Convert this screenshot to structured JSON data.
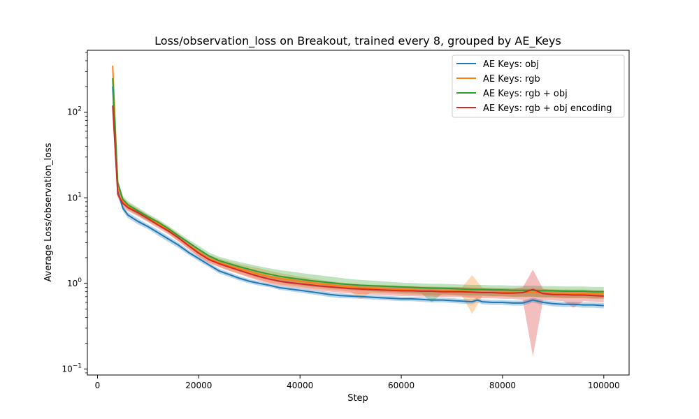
{
  "chart_data": {
    "type": "line",
    "title": "Loss/observation_loss on Breakout, trained every 8, grouped by AE_Keys",
    "xlabel": "Step",
    "ylabel": "Average Loss/observation_loss",
    "xlim": [
      -2000,
      105000
    ],
    "ylim": [
      0.085,
      530
    ],
    "yscale": "log",
    "grid": false,
    "legend_position": "upper right",
    "x_ticks": [
      0,
      20000,
      40000,
      60000,
      80000,
      100000
    ],
    "x_tick_labels": [
      "0",
      "20000",
      "40000",
      "60000",
      "80000",
      "100000"
    ],
    "y_ticks": [
      0.1,
      1,
      10,
      100
    ],
    "y_tick_labels": [
      {
        "base": "10",
        "exp": "−1"
      },
      {
        "base": "10",
        "exp": "0"
      },
      {
        "base": "10",
        "exp": "1"
      },
      {
        "base": "10",
        "exp": "2"
      }
    ],
    "series": [
      {
        "name": "AE Keys: obj",
        "color": "#1f77b4",
        "x": [
          3000,
          4000,
          5000,
          6000,
          8000,
          10000,
          12000,
          14000,
          16000,
          18000,
          20000,
          22000,
          24000,
          26000,
          28000,
          30000,
          32000,
          34000,
          36000,
          38000,
          40000,
          42000,
          44000,
          46000,
          48000,
          50000,
          52000,
          54000,
          56000,
          58000,
          60000,
          62000,
          64000,
          66000,
          68000,
          70000,
          72000,
          74000,
          75000,
          76000,
          78000,
          80000,
          82000,
          84000,
          86000,
          88000,
          90000,
          92000,
          94000,
          96000,
          98000,
          100000
        ],
        "y": [
          200,
          12,
          7.6,
          6.3,
          5.3,
          4.6,
          3.9,
          3.3,
          2.8,
          2.3,
          1.95,
          1.65,
          1.4,
          1.27,
          1.15,
          1.06,
          1.0,
          0.95,
          0.89,
          0.86,
          0.83,
          0.8,
          0.77,
          0.74,
          0.72,
          0.71,
          0.7,
          0.69,
          0.68,
          0.67,
          0.66,
          0.66,
          0.65,
          0.64,
          0.64,
          0.63,
          0.62,
          0.61,
          0.64,
          0.61,
          0.6,
          0.6,
          0.59,
          0.59,
          0.64,
          0.6,
          0.58,
          0.57,
          0.57,
          0.56,
          0.56,
          0.55
        ],
        "upper": [
          220,
          13,
          8.2,
          6.8,
          5.7,
          4.9,
          4.2,
          3.55,
          3.0,
          2.45,
          2.08,
          1.75,
          1.49,
          1.35,
          1.22,
          1.12,
          1.06,
          1.0,
          0.94,
          0.91,
          0.88,
          0.85,
          0.82,
          0.79,
          0.77,
          0.75,
          0.74,
          0.73,
          0.72,
          0.71,
          0.7,
          0.7,
          0.69,
          0.68,
          0.68,
          0.67,
          0.66,
          0.65,
          0.68,
          0.65,
          0.64,
          0.64,
          0.63,
          0.63,
          0.68,
          0.64,
          0.62,
          0.61,
          0.61,
          0.6,
          0.6,
          0.59
        ],
        "lower": [
          180,
          11,
          7.0,
          5.8,
          4.9,
          4.3,
          3.6,
          3.05,
          2.6,
          2.15,
          1.82,
          1.55,
          1.31,
          1.19,
          1.08,
          1.0,
          0.94,
          0.9,
          0.84,
          0.81,
          0.78,
          0.75,
          0.72,
          0.69,
          0.67,
          0.67,
          0.66,
          0.65,
          0.64,
          0.63,
          0.62,
          0.62,
          0.61,
          0.6,
          0.6,
          0.59,
          0.58,
          0.57,
          0.6,
          0.57,
          0.56,
          0.56,
          0.55,
          0.55,
          0.6,
          0.56,
          0.54,
          0.53,
          0.53,
          0.52,
          0.52,
          0.51
        ]
      },
      {
        "name": "AE Keys: rgb",
        "color": "#ff7f0e",
        "x": [
          3000,
          4000,
          5000,
          6000,
          8000,
          10000,
          12000,
          14000,
          16000,
          18000,
          20000,
          22000,
          24000,
          26000,
          28000,
          30000,
          32000,
          34000,
          36000,
          38000,
          40000,
          42000,
          44000,
          46000,
          48000,
          50000,
          52000,
          54000,
          56000,
          58000,
          60000,
          62000,
          64000,
          66000,
          68000,
          70000,
          72000,
          74000,
          76000,
          78000,
          80000,
          82000,
          84000,
          86000,
          88000,
          90000,
          92000,
          94000,
          96000,
          98000,
          100000
        ],
        "y": [
          350,
          14,
          9.2,
          8.0,
          6.8,
          5.8,
          5.0,
          4.2,
          3.4,
          2.8,
          2.3,
          1.95,
          1.75,
          1.6,
          1.48,
          1.38,
          1.28,
          1.2,
          1.14,
          1.1,
          1.06,
          1.02,
          0.99,
          0.96,
          0.93,
          0.91,
          0.89,
          0.88,
          0.87,
          0.86,
          0.85,
          0.84,
          0.83,
          0.83,
          0.82,
          0.82,
          0.81,
          0.8,
          0.8,
          0.79,
          0.79,
          0.78,
          0.78,
          0.78,
          0.77,
          0.77,
          0.76,
          0.76,
          0.76,
          0.75,
          0.75
        ],
        "upper": [
          380,
          15.5,
          10.2,
          8.8,
          7.4,
          6.3,
          5.4,
          4.6,
          3.75,
          3.1,
          2.55,
          2.15,
          1.95,
          1.8,
          1.68,
          1.58,
          1.5,
          1.4,
          1.32,
          1.26,
          1.2,
          1.15,
          1.1,
          1.06,
          1.03,
          1.0,
          0.98,
          0.97,
          0.96,
          0.95,
          0.94,
          0.93,
          0.92,
          0.92,
          0.91,
          0.91,
          0.9,
          1.25,
          0.89,
          0.88,
          0.88,
          0.87,
          0.87,
          0.87,
          0.86,
          0.86,
          0.85,
          0.85,
          0.85,
          0.84,
          0.84
        ],
        "lower": [
          320,
          12.5,
          8.3,
          7.2,
          6.2,
          5.3,
          4.6,
          3.85,
          3.1,
          2.55,
          2.08,
          1.76,
          1.57,
          1.42,
          1.3,
          1.2,
          1.1,
          1.02,
          0.97,
          0.94,
          0.91,
          0.88,
          0.86,
          0.84,
          0.82,
          0.8,
          0.66,
          0.78,
          0.77,
          0.76,
          0.75,
          0.74,
          0.73,
          0.73,
          0.72,
          0.72,
          0.71,
          0.44,
          0.71,
          0.7,
          0.7,
          0.69,
          0.69,
          0.69,
          0.68,
          0.68,
          0.67,
          0.67,
          0.67,
          0.66,
          0.66
        ]
      },
      {
        "name": "AE Keys: rgb + obj",
        "color": "#2ca02c",
        "x": [
          3000,
          4000,
          5000,
          6000,
          8000,
          10000,
          12000,
          14000,
          16000,
          18000,
          20000,
          22000,
          24000,
          26000,
          28000,
          30000,
          32000,
          34000,
          36000,
          38000,
          40000,
          42000,
          44000,
          46000,
          48000,
          50000,
          52000,
          54000,
          56000,
          58000,
          60000,
          62000,
          64000,
          66000,
          68000,
          70000,
          72000,
          74000,
          76000,
          78000,
          80000,
          82000,
          84000,
          86000,
          88000,
          90000,
          92000,
          94000,
          96000,
          98000,
          100000
        ],
        "y": [
          250,
          15,
          9.6,
          8.3,
          7.0,
          6.0,
          5.2,
          4.35,
          3.6,
          3.0,
          2.5,
          2.1,
          1.85,
          1.7,
          1.57,
          1.46,
          1.36,
          1.28,
          1.21,
          1.16,
          1.12,
          1.08,
          1.05,
          1.02,
          0.99,
          0.97,
          0.95,
          0.94,
          0.93,
          0.92,
          0.91,
          0.9,
          0.89,
          0.88,
          0.88,
          0.87,
          0.86,
          0.85,
          0.85,
          0.84,
          0.84,
          0.83,
          0.83,
          0.83,
          0.82,
          0.82,
          0.81,
          0.81,
          0.81,
          0.8,
          0.8
        ],
        "upper": [
          275,
          16.5,
          10.5,
          9.1,
          7.7,
          6.5,
          5.6,
          4.7,
          3.9,
          3.25,
          2.75,
          2.3,
          2.05,
          1.9,
          1.78,
          1.68,
          1.58,
          1.5,
          1.43,
          1.38,
          1.33,
          1.28,
          1.24,
          1.2,
          1.16,
          1.12,
          1.1,
          1.08,
          1.06,
          1.04,
          1.02,
          1.01,
          1.0,
          0.99,
          0.99,
          0.98,
          0.97,
          0.96,
          0.96,
          0.95,
          0.95,
          0.94,
          0.94,
          0.94,
          0.93,
          0.93,
          0.92,
          0.92,
          0.92,
          0.91,
          0.91
        ],
        "lower": [
          225,
          13.5,
          8.7,
          7.5,
          6.3,
          5.4,
          4.7,
          3.95,
          3.3,
          2.75,
          2.27,
          1.9,
          1.67,
          1.52,
          1.4,
          1.28,
          1.17,
          1.1,
          1.03,
          0.98,
          0.95,
          0.92,
          0.9,
          0.88,
          0.86,
          0.84,
          0.82,
          0.81,
          0.8,
          0.79,
          0.78,
          0.77,
          0.76,
          0.6,
          0.75,
          0.74,
          0.73,
          0.72,
          0.72,
          0.71,
          0.71,
          0.7,
          0.7,
          0.7,
          0.69,
          0.69,
          0.68,
          0.68,
          0.68,
          0.67,
          0.67
        ]
      },
      {
        "name": "AE Keys: rgb + obj encoding",
        "color": "#d62728",
        "x": [
          3000,
          4000,
          5000,
          6000,
          8000,
          10000,
          12000,
          14000,
          16000,
          18000,
          20000,
          22000,
          24000,
          26000,
          28000,
          30000,
          32000,
          34000,
          36000,
          38000,
          40000,
          42000,
          44000,
          46000,
          48000,
          50000,
          52000,
          54000,
          56000,
          58000,
          60000,
          62000,
          64000,
          66000,
          68000,
          70000,
          72000,
          74000,
          76000,
          78000,
          80000,
          82000,
          84000,
          86000,
          88000,
          90000,
          92000,
          94000,
          96000,
          98000,
          100000
        ],
        "y": [
          120,
          11,
          8.6,
          7.7,
          6.7,
          5.7,
          4.8,
          4.1,
          3.4,
          2.75,
          2.25,
          1.9,
          1.7,
          1.55,
          1.42,
          1.3,
          1.2,
          1.12,
          1.06,
          1.02,
          0.99,
          0.96,
          0.93,
          0.91,
          0.89,
          0.87,
          0.86,
          0.85,
          0.84,
          0.83,
          0.82,
          0.82,
          0.81,
          0.81,
          0.8,
          0.8,
          0.8,
          0.79,
          0.78,
          0.78,
          0.77,
          0.77,
          0.78,
          0.85,
          0.76,
          0.74,
          0.74,
          0.73,
          0.73,
          0.72,
          0.71
        ],
        "upper": [
          132,
          12,
          9.4,
          8.4,
          7.3,
          6.2,
          5.2,
          4.45,
          3.7,
          3.0,
          2.45,
          2.07,
          1.85,
          1.7,
          1.56,
          1.43,
          1.33,
          1.24,
          1.18,
          1.13,
          1.1,
          1.07,
          1.03,
          1.01,
          0.99,
          0.97,
          0.96,
          0.95,
          0.94,
          0.93,
          0.92,
          0.92,
          0.91,
          0.91,
          0.9,
          0.9,
          0.9,
          0.89,
          0.88,
          0.88,
          0.87,
          0.87,
          0.9,
          1.45,
          0.86,
          0.84,
          0.84,
          0.83,
          0.83,
          0.82,
          0.81
        ],
        "lower": [
          108,
          10,
          7.8,
          7.0,
          6.1,
          5.2,
          4.4,
          3.75,
          3.1,
          2.5,
          2.05,
          1.73,
          1.55,
          1.4,
          1.28,
          1.17,
          1.07,
          1.0,
          0.94,
          0.91,
          0.88,
          0.85,
          0.82,
          0.8,
          0.78,
          0.76,
          0.75,
          0.74,
          0.73,
          0.72,
          0.71,
          0.71,
          0.7,
          0.7,
          0.69,
          0.69,
          0.69,
          0.68,
          0.67,
          0.67,
          0.66,
          0.66,
          0.64,
          0.14,
          0.64,
          0.63,
          0.62,
          0.52,
          0.62,
          0.61,
          0.6
        ]
      }
    ]
  }
}
